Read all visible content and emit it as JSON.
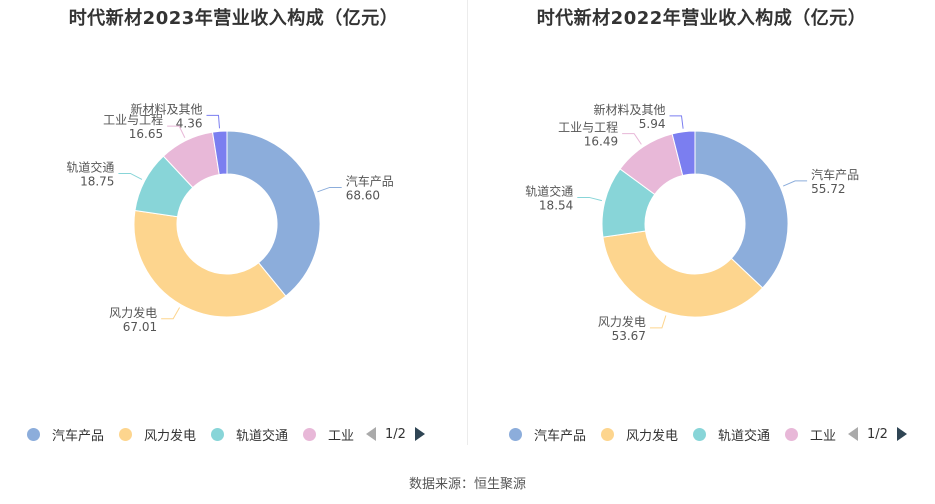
{
  "source": "数据来源：恒生聚源",
  "colors": {
    "auto": "#8caddb",
    "wind": "#fdd58e",
    "rail": "#88d5d8",
    "industry": "#e8b8d8",
    "other": "#7b7ef0"
  },
  "chart_data": [
    {
      "type": "pie",
      "variant": "donut",
      "title": "时代新材2023年营业收入构成（亿元）",
      "categories": [
        "汽车产品",
        "风力发电",
        "轨道交通",
        "工业与工程",
        "新材料及其他"
      ],
      "values": [
        68.6,
        67.01,
        18.75,
        16.65,
        4.36
      ],
      "value_labels": [
        "68.60",
        "67.01",
        "18.75",
        "16.65",
        "4.36"
      ],
      "legend": {
        "items": [
          "汽车产品",
          "风力发电",
          "轨道交通",
          "工业"
        ],
        "page": "1/2",
        "position": "bottom"
      }
    },
    {
      "type": "pie",
      "variant": "donut",
      "title": "时代新材2022年营业收入构成（亿元）",
      "categories": [
        "汽车产品",
        "风力发电",
        "轨道交通",
        "工业与工程",
        "新材料及其他"
      ],
      "values": [
        55.72,
        53.67,
        18.54,
        16.49,
        5.94
      ],
      "value_labels": [
        "55.72",
        "53.67",
        "18.54",
        "16.49",
        "5.94"
      ],
      "legend": {
        "items": [
          "汽车产品",
          "风力发电",
          "轨道交通",
          "工业"
        ],
        "page": "1/2",
        "position": "bottom"
      }
    }
  ]
}
